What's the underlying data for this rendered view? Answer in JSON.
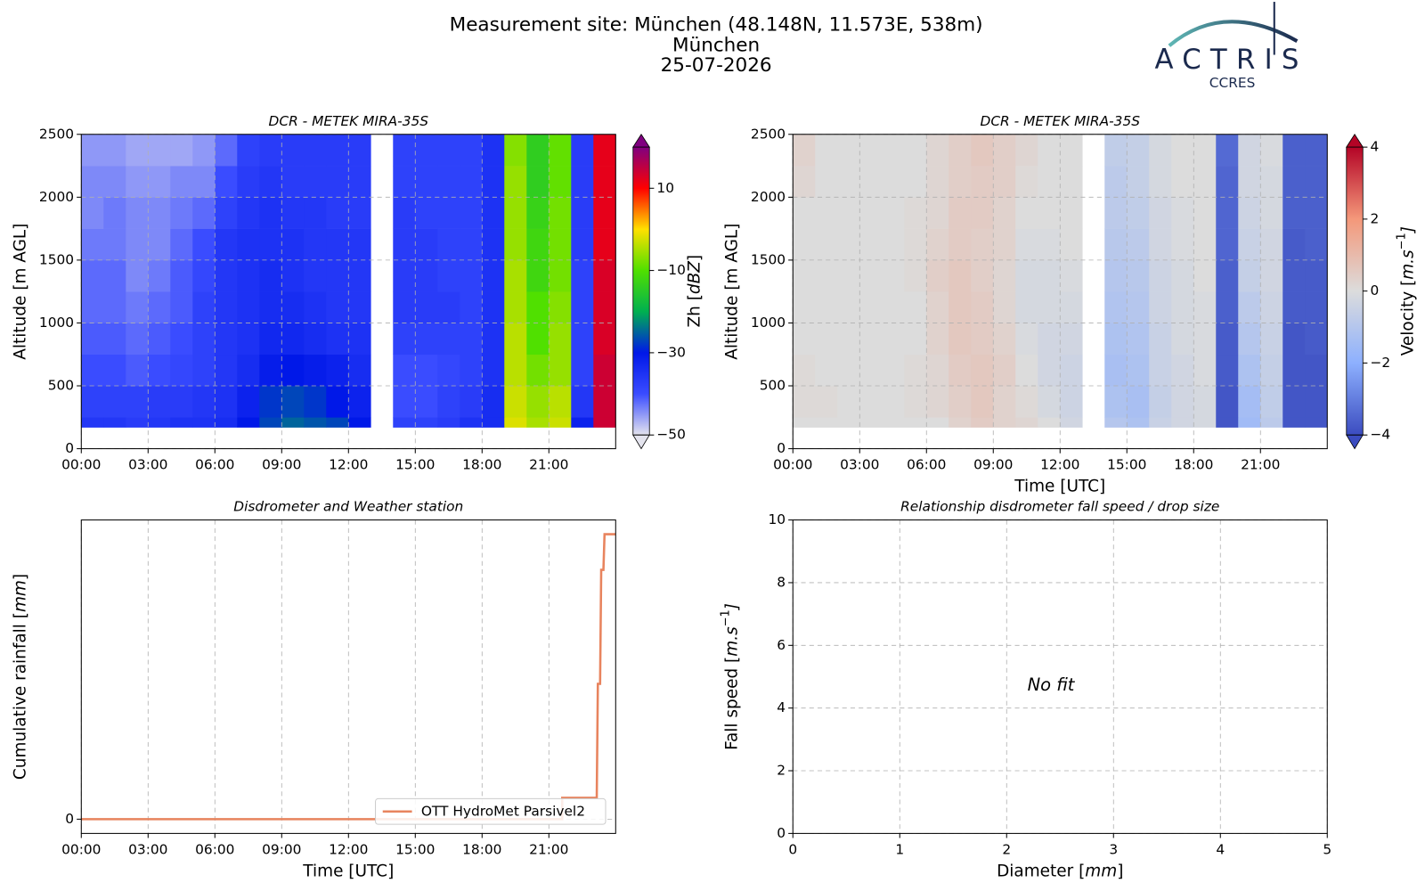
{
  "header": {
    "title_lines": [
      "Measurement site: München (48.148N, 11.573E, 538m)",
      "München",
      "25-07-2026"
    ],
    "logo": {
      "name": "ACTRIS",
      "sub": "CCRES"
    }
  },
  "chart_data": [
    {
      "type": "heatmap",
      "title": "DCR - METEK MIRA-35S",
      "ylabel": [
        {
          "text": "Altitude [m AGL]"
        }
      ],
      "x_edges": [
        0,
        1,
        2,
        3,
        4,
        5,
        6,
        7,
        8,
        9,
        10,
        11,
        12,
        13,
        14,
        15,
        16,
        17,
        18,
        19,
        20,
        21,
        22,
        23,
        24
      ],
      "y_edges": [
        170,
        250,
        500,
        750,
        1000,
        1250,
        1500,
        1750,
        2000,
        2250,
        2500
      ],
      "z": [
        [
          -36,
          -36,
          -37,
          -36,
          -35,
          -35,
          -34,
          -30,
          -27,
          -25,
          -26,
          -27,
          -30,
          null,
          -38,
          -38,
          -37,
          -35,
          -34,
          -2,
          -5,
          -3,
          -32,
          14
        ],
        [
          -38,
          -38,
          -38,
          -37,
          -37,
          -36,
          -35,
          -32,
          -28,
          -27,
          -28,
          -30,
          -32,
          null,
          -40,
          -40,
          -38,
          -37,
          -34,
          -3,
          -6,
          -4,
          -36,
          14
        ],
        [
          -40,
          -40,
          -41,
          -40,
          -39,
          -38,
          -36,
          -34,
          -31,
          -30,
          -31,
          -32,
          -34,
          null,
          -40,
          -40,
          -39,
          -38,
          -35,
          -4,
          -8,
          -6,
          -38,
          14
        ],
        [
          -41,
          -41,
          -42,
          -41,
          -40,
          -38,
          -36,
          -35,
          -33,
          -33,
          -34,
          -35,
          -35,
          null,
          -38,
          -38,
          -38,
          -38,
          -35,
          -4,
          -10,
          -6,
          -38,
          13
        ],
        [
          -42,
          -42,
          -43,
          -42,
          -41,
          -38,
          -36,
          -35,
          -34,
          -34,
          -35,
          -36,
          -36,
          null,
          -37,
          -37,
          -37,
          -38,
          -35,
          -5,
          -10,
          -7,
          -38,
          13
        ],
        [
          -42,
          -42,
          -44,
          -43,
          -41,
          -39,
          -36,
          -35,
          -34,
          -35,
          -36,
          -36,
          -36,
          null,
          -37,
          -37,
          -38,
          -38,
          -35,
          -5,
          -12,
          -8,
          -38,
          13
        ],
        [
          -43,
          -43,
          -44,
          -44,
          -42,
          -40,
          -36,
          -35,
          -35,
          -35,
          -36,
          -36,
          -36,
          null,
          -37,
          -37,
          -38,
          -38,
          -35,
          -6,
          -12,
          -8,
          -37,
          12
        ],
        [
          -44,
          -43,
          -44,
          -44,
          -43,
          -42,
          -38,
          -36,
          -35,
          -36,
          -36,
          -37,
          -37,
          null,
          -37,
          -38,
          -38,
          -38,
          -35,
          -6,
          -13,
          -8,
          -37,
          12
        ],
        [
          -44,
          -44,
          -45,
          -45,
          -44,
          -44,
          -40,
          -37,
          -36,
          -37,
          -37,
          -37,
          -37,
          null,
          -38,
          -38,
          -38,
          -38,
          -35,
          -6,
          -14,
          -9,
          -37,
          12
        ],
        [
          -45,
          -45,
          -46,
          -46,
          -46,
          -45,
          -42,
          -38,
          -37,
          -37,
          -37,
          -37,
          -37,
          null,
          -38,
          -38,
          -38,
          -38,
          -35,
          -7,
          -14,
          -9,
          -37,
          12
        ]
      ],
      "xlim": [
        0,
        24
      ],
      "xticks": [
        {
          "value": 0,
          "label": "00:00"
        },
        {
          "value": 3,
          "label": "03:00"
        },
        {
          "value": 6,
          "label": "06:00"
        },
        {
          "value": 9,
          "label": "09:00"
        },
        {
          "value": 12,
          "label": "12:00"
        },
        {
          "value": 15,
          "label": "15:00"
        },
        {
          "value": 18,
          "label": "18:00"
        },
        {
          "value": 21,
          "label": "21:00"
        }
      ],
      "ylim": [
        0,
        2500
      ],
      "yticks": [
        0,
        500,
        1000,
        1500,
        2000,
        2500
      ],
      "grid": true,
      "colorbar": {
        "label": [
          {
            "text": "Zh ["
          },
          {
            "text": "dBZ",
            "format": "italic"
          },
          {
            "text": "]"
          }
        ],
        "lim": [
          -50,
          20
        ],
        "ticks": [
          {
            "value": -50,
            "label": "−50"
          },
          {
            "value": -30,
            "label": "−30"
          },
          {
            "value": -10,
            "label": "−10"
          },
          10
        ],
        "colormap": [
          "#e4e4ee",
          "#3a4cff",
          "#0018e8",
          "#00b050",
          "#50e000",
          "#ffe000",
          "#ff0000",
          "#800080"
        ]
      }
    },
    {
      "type": "heatmap",
      "title": "DCR - METEK MIRA-35S",
      "ylabel": [
        {
          "text": "Altitude [m AGL]"
        }
      ],
      "xlabel": [
        {
          "text": "Time [UTC]"
        }
      ],
      "x_edges": [
        0,
        1,
        2,
        3,
        4,
        5,
        6,
        7,
        8,
        9,
        10,
        11,
        12,
        13,
        14,
        15,
        16,
        17,
        18,
        19,
        20,
        21,
        22,
        23,
        24
      ],
      "y_edges": [
        170,
        250,
        500,
        750,
        1000,
        1250,
        1500,
        1750,
        2000,
        2250,
        2500
      ],
      "z": [
        [
          0,
          0,
          0,
          0,
          0,
          0,
          0,
          0.3,
          0.5,
          0.3,
          0.2,
          0,
          -0.3,
          null,
          -1,
          -1.2,
          -0.5,
          -0.3,
          -0.2,
          -3.8,
          -1.5,
          -0.8,
          -3.8,
          -3.8
        ],
        [
          0.1,
          0.1,
          0,
          0,
          0,
          0.1,
          0.2,
          0.4,
          0.6,
          0.3,
          0.1,
          -0.2,
          -0.4,
          null,
          -1.2,
          -1.3,
          -0.6,
          -0.3,
          -0.2,
          -3.8,
          -1.4,
          -0.7,
          -3.8,
          -3.8
        ],
        [
          0.1,
          0,
          0,
          0,
          0,
          0.1,
          0.2,
          0.5,
          0.6,
          0.4,
          0,
          -0.3,
          -0.4,
          null,
          -1.3,
          -1.2,
          -0.5,
          -0.3,
          -0.1,
          -3.7,
          -1.2,
          -0.6,
          -3.8,
          -3.8
        ],
        [
          0,
          0,
          0,
          0,
          0,
          0,
          0.3,
          0.6,
          0.5,
          0.3,
          -0.1,
          -0.3,
          -0.3,
          null,
          -1.2,
          -1.1,
          -0.5,
          -0.2,
          -0.1,
          -3.7,
          -1,
          -0.5,
          -3.8,
          -3.7
        ],
        [
          0,
          0,
          0,
          0,
          0,
          0,
          0.3,
          0.6,
          0.5,
          0.2,
          -0.2,
          -0.2,
          -0.2,
          null,
          -1.1,
          -1,
          -0.4,
          -0.2,
          -0.1,
          -3.6,
          -0.8,
          -0.4,
          -3.7,
          -3.7
        ],
        [
          0,
          0,
          0,
          0,
          0,
          0.1,
          0.4,
          0.6,
          0.4,
          0.2,
          -0.2,
          -0.2,
          -0.1,
          null,
          -1,
          -0.9,
          -0.4,
          -0.2,
          0,
          -3.6,
          -0.6,
          -0.3,
          -3.7,
          -3.7
        ],
        [
          0,
          0,
          0,
          0,
          0,
          0.1,
          0.3,
          0.5,
          0.4,
          0.3,
          -0.1,
          -0.1,
          0,
          null,
          -0.9,
          -0.8,
          -0.3,
          -0.1,
          0,
          -3.5,
          -0.5,
          -0.3,
          -3.7,
          -3.6
        ],
        [
          0,
          0,
          0,
          0,
          0,
          0.1,
          0.2,
          0.5,
          0.5,
          0.3,
          0,
          0,
          0,
          null,
          -0.8,
          -0.7,
          -0.3,
          -0.1,
          0,
          -3.5,
          -0.4,
          -0.2,
          -3.6,
          -3.6
        ],
        [
          0.2,
          0,
          0,
          0,
          0,
          0,
          0.2,
          0.4,
          0.5,
          0.4,
          0.1,
          0,
          0,
          null,
          -0.8,
          -0.6,
          -0.2,
          0,
          0,
          -3.5,
          -0.3,
          -0.2,
          -3.6,
          -3.6
        ],
        [
          0.3,
          0,
          0,
          0,
          0,
          0,
          0.2,
          0.4,
          0.6,
          0.4,
          0.2,
          0,
          0,
          null,
          -0.7,
          -0.6,
          -0.2,
          0,
          0,
          -3.4,
          -0.3,
          -0.1,
          -3.6,
          -3.6
        ]
      ],
      "xlim": [
        0,
        24
      ],
      "xticks": [
        {
          "value": 0,
          "label": "00:00"
        },
        {
          "value": 3,
          "label": "03:00"
        },
        {
          "value": 6,
          "label": "06:00"
        },
        {
          "value": 9,
          "label": "09:00"
        },
        {
          "value": 12,
          "label": "12:00"
        },
        {
          "value": 15,
          "label": "15:00"
        },
        {
          "value": 18,
          "label": "18:00"
        },
        {
          "value": 21,
          "label": "21:00"
        }
      ],
      "ylim": [
        0,
        2500
      ],
      "yticks": [
        0,
        500,
        1000,
        1500,
        2000,
        2500
      ],
      "grid": true,
      "colorbar": {
        "label": [
          {
            "text": "Velocity ["
          },
          {
            "text": "m.s",
            "format": "italic"
          },
          {
            "text": "−1",
            "format": "sup"
          },
          {
            "text": "]",
            "format": "italic"
          }
        ],
        "lim": [
          -4,
          4
        ],
        "ticks": [
          {
            "value": -4,
            "label": "−4"
          },
          {
            "value": -2,
            "label": "−2"
          },
          0,
          2,
          4
        ],
        "colormap": [
          "#3b4cc0",
          "#8db0fe",
          "#dcdcdc",
          "#f4987a",
          "#b40426"
        ]
      }
    },
    {
      "type": "line",
      "title": "Disdrometer and Weather station",
      "ylabel": [
        {
          "text": "Cumulative rainfall ["
        },
        {
          "text": "mm",
          "format": "italic"
        },
        {
          "text": "]"
        }
      ],
      "xlabel": [
        {
          "text": "Time [UTC]"
        }
      ],
      "series": [
        {
          "name": "OTT HydroMet Parsivel2",
          "color": "#e8845e",
          "x": [
            0,
            21.6,
            21.6,
            23.15,
            23.2,
            23.3,
            23.35,
            23.45,
            23.5,
            24
          ],
          "values": [
            0,
            0,
            0.3,
            0.3,
            1.9,
            1.9,
            3.5,
            3.5,
            4.0,
            4.0
          ]
        }
      ],
      "xlim": [
        0,
        24
      ],
      "xticks": [
        {
          "value": 0,
          "label": "00:00"
        },
        {
          "value": 3,
          "label": "03:00"
        },
        {
          "value": 6,
          "label": "06:00"
        },
        {
          "value": 9,
          "label": "09:00"
        },
        {
          "value": 12,
          "label": "12:00"
        },
        {
          "value": 15,
          "label": "15:00"
        },
        {
          "value": 18,
          "label": "18:00"
        },
        {
          "value": 21,
          "label": "21:00"
        }
      ],
      "ylim": [
        -0.2,
        4.2
      ],
      "yticks": [
        0
      ],
      "grid": true,
      "legend": "lower right"
    },
    {
      "type": "scatter",
      "title": "Relationship disdrometer fall speed / drop size",
      "ylabel": [
        {
          "text": "Fall speed ["
        },
        {
          "text": "m.s",
          "format": "italic"
        },
        {
          "text": "−1",
          "format": "sup"
        },
        {
          "text": "]",
          "format": "italic"
        }
      ],
      "xlabel": [
        {
          "text": "Diameter ["
        },
        {
          "text": "mm",
          "format": "italic"
        },
        {
          "text": "]"
        }
      ],
      "annotation": "No fit",
      "xlim": [
        0,
        5
      ],
      "xticks": [
        0,
        1,
        2,
        3,
        4,
        5
      ],
      "ylim": [
        0,
        10
      ],
      "yticks": [
        0,
        2,
        4,
        6,
        8,
        10
      ],
      "grid": true
    }
  ]
}
